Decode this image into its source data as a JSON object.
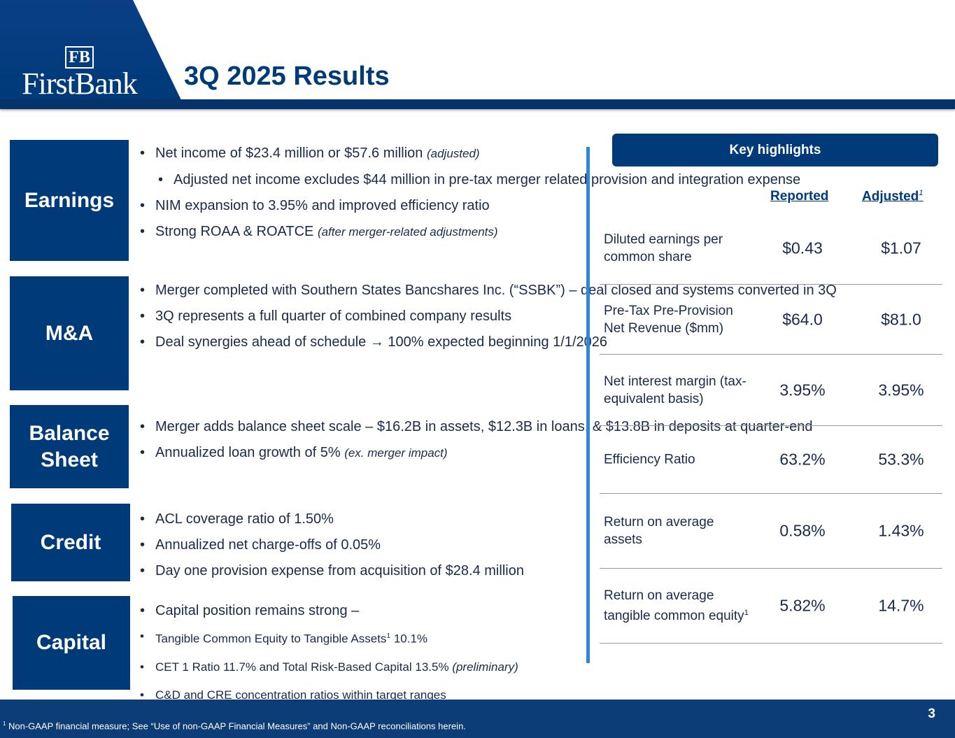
{
  "header": {
    "logo_mark": "FB",
    "logo_name": "FirstBank",
    "title": "3Q 2025 Results"
  },
  "sections": [
    {
      "label": "Earnings",
      "bullets": [
        {
          "text": "Net income of $23.4 million or $57.6 million",
          "note": "(adjusted)"
        },
        {
          "text": "Adjusted net income excludes $44 million in pre-tax merger related provision and integration expense",
          "sub": true
        },
        {
          "text": "NIM expansion to 3.95% and improved efficiency ratio"
        },
        {
          "text": "Strong ROAA & ROATCE",
          "note": "(after merger-related adjustments)"
        }
      ]
    },
    {
      "label": "M&A",
      "bullets": [
        {
          "text": "Merger completed with Southern States Bancshares Inc. (“SSBK”) – deal closed and systems converted in 3Q"
        },
        {
          "text": "3Q represents a full quarter of combined company results"
        },
        {
          "text": "Deal synergies ahead of schedule → 100% expected beginning 1/1/2026"
        }
      ]
    },
    {
      "label": "Balance Sheet",
      "bullets": [
        {
          "text": "Merger adds balance sheet scale – $16.2B in assets, $12.3B in loans, & $13.8B in deposits at quarter-end"
        },
        {
          "text": "Annualized loan growth of 5%",
          "note": "(ex. merger impact)"
        }
      ]
    },
    {
      "label": "Credit",
      "bullets": [
        {
          "text": "ACL coverage ratio of 1.50%"
        },
        {
          "text": "Annualized net charge-offs of 0.05%"
        },
        {
          "text": "Day one provision expense from acquisition of $28.4 million"
        }
      ]
    },
    {
      "label": "Capital",
      "bullets": [
        {
          "text": "Capital position remains strong –"
        },
        {
          "text": "Tangible Common Equity to Tangible Assets",
          "sup": "1",
          "after": " 10.1%",
          "small": true
        },
        {
          "text": "CET 1 Ratio 11.7% and Total Risk-Based Capital 13.5%",
          "note": "(preliminary)",
          "small": true
        },
        {
          "text": "C&D and CRE concentration ratios within target ranges",
          "small": true
        }
      ]
    }
  ],
  "highlights": {
    "title": "Key highlights",
    "col_reported": "Reported",
    "col_adjusted": "Adjusted",
    "col_adjusted_sup": "1",
    "rows": [
      {
        "metric": "Diluted earnings per common share",
        "reported": "$0.43",
        "adjusted": "$1.07"
      },
      {
        "metric": "Pre-Tax Pre-Provision Net Revenue ($mm)",
        "reported": "$64.0",
        "adjusted": "$81.0"
      },
      {
        "metric": "Net interest margin (tax-equivalent basis)",
        "reported": "3.95%",
        "adjusted": "3.95%"
      },
      {
        "metric": "Efficiency Ratio",
        "reported": "63.2%",
        "adjusted": "53.3%"
      },
      {
        "metric": "Return on average assets",
        "reported": "0.58%",
        "adjusted": "1.43%"
      },
      {
        "metric": "Return on average tangible common equity",
        "metric_sup": "1",
        "reported": "5.82%",
        "adjusted": "14.7%"
      }
    ]
  },
  "footer": {
    "page": "3",
    "note_sup": "1",
    "note": "Non-GAAP financial measure; See “Use of non-GAAP Financial Measures” and Non-GAAP reconciliations herein."
  }
}
